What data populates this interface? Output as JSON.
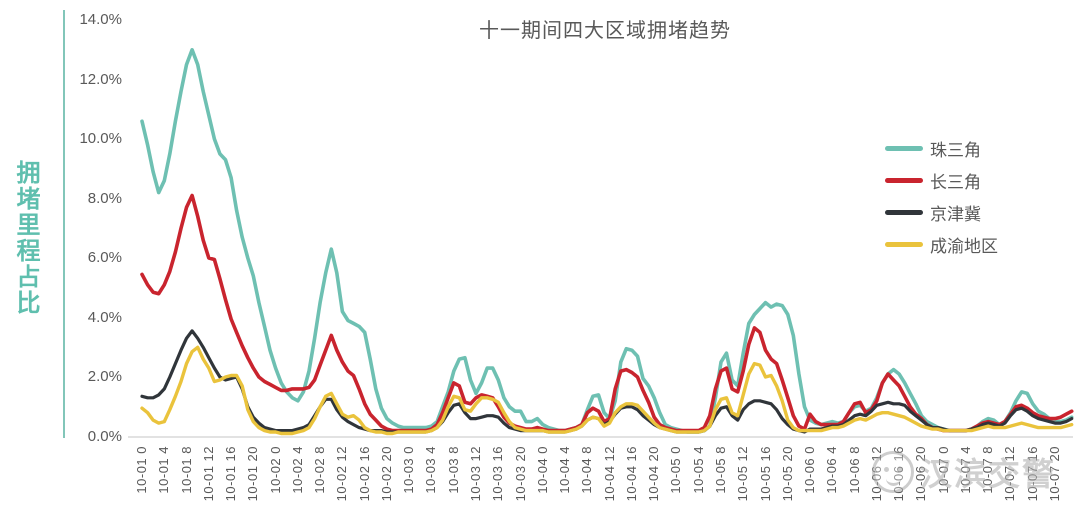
{
  "watermark": {
    "text": "汉滨交警",
    "icon": "badge-face-icon",
    "color": "#ababab"
  },
  "ui_colors": {
    "background": "#ffffff",
    "title_text": "#595959",
    "tick_text": "#595959",
    "y_axis_line": "#82c6b9",
    "y_axis_title_text": "#5fbfae",
    "baseline": "#d9d9d9"
  },
  "chart_data": {
    "type": "line",
    "title": "十一期间四大区域拥堵趋势",
    "ylabel": "拥堵里程占比",
    "xlabel": "",
    "ylim": [
      0,
      14
    ],
    "grid": false,
    "legend_position": "right",
    "x_unit": "hours from 10-01 00:00, hourly sampling",
    "x_tick_interval_hours": 4,
    "y_ticks": [
      {
        "value": 0,
        "label": "0.0%"
      },
      {
        "value": 2,
        "label": "2.0%"
      },
      {
        "value": 4,
        "label": "4.0%"
      },
      {
        "value": 6,
        "label": "6.0%"
      },
      {
        "value": 8,
        "label": "8.0%"
      },
      {
        "value": 10,
        "label": "10.0%"
      },
      {
        "value": 12,
        "label": "12.0%"
      },
      {
        "value": 14,
        "label": "14.0%"
      }
    ],
    "x_tick_labels": [
      "10-01 0",
      "10-01 4",
      "10-01 8",
      "10-01 12",
      "10-01 16",
      "10-01 20",
      "10-02 0",
      "10-02 4",
      "10-02 8",
      "10-02 12",
      "10-02 16",
      "10-02 20",
      "10-03 0",
      "10-03 4",
      "10-03 8",
      "10-03 12",
      "10-03 16",
      "10-03 20",
      "10-04 0",
      "10-04 4",
      "10-04 8",
      "10-04 12",
      "10-04 16",
      "10-04 20",
      "10-05 0",
      "10-05 4",
      "10-05 8",
      "10-05 12",
      "10-05 16",
      "10-05 20",
      "10-06 0",
      "10-06 4",
      "10-06 8",
      "10-06 12",
      "10-06 16",
      "10-06 20",
      "10-07 0",
      "10-07 4",
      "10-07 8",
      "10-07 12",
      "10-07 16",
      "10-07 20"
    ],
    "series": [
      {
        "id": "zhu-san-jiao",
        "name": "珠三角",
        "color": "#6ec0b2",
        "stroke_width": 3.6,
        "values": [
          10.6,
          9.8,
          8.9,
          8.2,
          8.6,
          9.5,
          10.6,
          11.6,
          12.5,
          13.0,
          12.5,
          11.6,
          10.8,
          10.0,
          9.5,
          9.3,
          8.7,
          7.6,
          6.7,
          6.0,
          5.4,
          4.5,
          3.7,
          2.9,
          2.3,
          1.8,
          1.5,
          1.3,
          1.2,
          1.5,
          2.2,
          3.3,
          4.5,
          5.5,
          6.3,
          5.5,
          4.2,
          3.9,
          3.8,
          3.7,
          3.5,
          2.6,
          1.6,
          0.95,
          0.6,
          0.45,
          0.35,
          0.3,
          0.3,
          0.3,
          0.3,
          0.3,
          0.35,
          0.5,
          1.0,
          1.5,
          2.2,
          2.6,
          2.65,
          1.9,
          1.45,
          1.8,
          2.3,
          2.3,
          1.9,
          1.3,
          1.0,
          0.85,
          0.85,
          0.5,
          0.5,
          0.6,
          0.4,
          0.3,
          0.25,
          0.2,
          0.2,
          0.25,
          0.3,
          0.4,
          0.9,
          1.35,
          1.4,
          0.8,
          0.6,
          1.2,
          2.5,
          2.95,
          2.9,
          2.7,
          1.95,
          1.7,
          1.3,
          0.8,
          0.4,
          0.3,
          0.25,
          0.2,
          0.15,
          0.15,
          0.15,
          0.2,
          0.35,
          1.3,
          2.5,
          2.8,
          1.9,
          1.7,
          2.8,
          3.8,
          4.1,
          4.3,
          4.5,
          4.35,
          4.45,
          4.4,
          4.1,
          3.4,
          2.1,
          1.0,
          0.55,
          0.45,
          0.4,
          0.45,
          0.5,
          0.45,
          0.5,
          0.8,
          1.0,
          1.05,
          0.85,
          0.95,
          1.3,
          1.8,
          2.1,
          2.25,
          2.1,
          1.8,
          1.45,
          1.1,
          0.7,
          0.5,
          0.4,
          0.3,
          0.25,
          0.2,
          0.2,
          0.2,
          0.2,
          0.25,
          0.35,
          0.5,
          0.6,
          0.55,
          0.4,
          0.5,
          0.8,
          1.2,
          1.5,
          1.45,
          1.1,
          0.85,
          0.75,
          0.6,
          0.5,
          0.5,
          0.55,
          0.65
        ]
      },
      {
        "id": "chang-san-jiao",
        "name": "长三角",
        "color": "#c9242e",
        "stroke_width": 3.6,
        "values": [
          5.45,
          5.1,
          4.85,
          4.8,
          5.1,
          5.55,
          6.2,
          7.0,
          7.7,
          8.1,
          7.4,
          6.6,
          6.0,
          5.95,
          5.3,
          4.6,
          3.95,
          3.5,
          3.05,
          2.65,
          2.3,
          2.0,
          1.85,
          1.75,
          1.65,
          1.55,
          1.55,
          1.6,
          1.6,
          1.6,
          1.65,
          1.9,
          2.4,
          2.9,
          3.4,
          2.9,
          2.5,
          2.2,
          2.05,
          1.6,
          1.1,
          0.75,
          0.55,
          0.35,
          0.25,
          0.2,
          0.2,
          0.2,
          0.2,
          0.2,
          0.2,
          0.2,
          0.25,
          0.4,
          0.8,
          1.3,
          1.8,
          1.7,
          1.15,
          1.1,
          1.3,
          1.4,
          1.35,
          1.3,
          1.0,
          0.65,
          0.45,
          0.35,
          0.3,
          0.25,
          0.25,
          0.3,
          0.25,
          0.2,
          0.2,
          0.2,
          0.2,
          0.25,
          0.3,
          0.4,
          0.8,
          0.95,
          0.85,
          0.5,
          0.6,
          1.6,
          2.2,
          2.25,
          2.15,
          2.0,
          1.55,
          1.15,
          0.65,
          0.4,
          0.3,
          0.25,
          0.2,
          0.2,
          0.2,
          0.2,
          0.2,
          0.3,
          0.7,
          1.6,
          2.2,
          2.3,
          1.6,
          1.5,
          2.2,
          3.1,
          3.65,
          3.5,
          2.9,
          2.6,
          2.45,
          1.9,
          1.3,
          0.7,
          0.35,
          0.25,
          0.75,
          0.5,
          0.4,
          0.4,
          0.4,
          0.4,
          0.5,
          0.8,
          1.1,
          1.15,
          0.8,
          0.9,
          1.2,
          1.8,
          2.1,
          1.9,
          1.7,
          1.35,
          1.0,
          0.75,
          0.6,
          0.4,
          0.3,
          0.25,
          0.2,
          0.2,
          0.2,
          0.2,
          0.2,
          0.25,
          0.35,
          0.45,
          0.5,
          0.45,
          0.4,
          0.5,
          0.75,
          1.0,
          1.05,
          0.95,
          0.8,
          0.7,
          0.65,
          0.6,
          0.6,
          0.65,
          0.75,
          0.85
        ]
      },
      {
        "id": "jing-jin-ji",
        "name": "京津冀",
        "color": "#30353a",
        "stroke_width": 3.2,
        "values": [
          1.35,
          1.3,
          1.3,
          1.4,
          1.6,
          2.0,
          2.45,
          2.9,
          3.3,
          3.55,
          3.3,
          3.0,
          2.65,
          2.3,
          2.0,
          1.9,
          1.95,
          2.0,
          1.6,
          1.0,
          0.65,
          0.45,
          0.3,
          0.25,
          0.2,
          0.2,
          0.2,
          0.2,
          0.25,
          0.3,
          0.4,
          0.7,
          1.0,
          1.25,
          1.25,
          0.9,
          0.65,
          0.5,
          0.4,
          0.3,
          0.25,
          0.2,
          0.2,
          0.2,
          0.15,
          0.15,
          0.15,
          0.15,
          0.15,
          0.15,
          0.15,
          0.15,
          0.2,
          0.3,
          0.5,
          0.8,
          1.05,
          1.1,
          0.8,
          0.6,
          0.6,
          0.65,
          0.7,
          0.7,
          0.65,
          0.45,
          0.3,
          0.25,
          0.2,
          0.2,
          0.2,
          0.2,
          0.2,
          0.15,
          0.15,
          0.15,
          0.15,
          0.2,
          0.25,
          0.35,
          0.55,
          0.65,
          0.6,
          0.4,
          0.5,
          0.75,
          0.95,
          1.0,
          1.0,
          0.9,
          0.7,
          0.55,
          0.4,
          0.3,
          0.25,
          0.2,
          0.15,
          0.15,
          0.15,
          0.15,
          0.15,
          0.2,
          0.35,
          0.7,
          0.95,
          1.0,
          0.7,
          0.55,
          0.9,
          1.1,
          1.2,
          1.2,
          1.15,
          1.1,
          0.9,
          0.6,
          0.4,
          0.25,
          0.2,
          0.15,
          0.25,
          0.25,
          0.25,
          0.3,
          0.35,
          0.35,
          0.4,
          0.55,
          0.7,
          0.75,
          0.7,
          0.85,
          1.05,
          1.1,
          1.15,
          1.1,
          1.1,
          1.05,
          0.85,
          0.7,
          0.55,
          0.4,
          0.3,
          0.3,
          0.25,
          0.2,
          0.2,
          0.2,
          0.2,
          0.25,
          0.3,
          0.4,
          0.45,
          0.4,
          0.35,
          0.45,
          0.7,
          0.9,
          0.95,
          0.85,
          0.7,
          0.6,
          0.55,
          0.5,
          0.45,
          0.45,
          0.5,
          0.6
        ]
      },
      {
        "id": "cheng-yu",
        "name": "成渝地区",
        "color": "#eac33c",
        "stroke_width": 3.4,
        "values": [
          0.95,
          0.8,
          0.55,
          0.45,
          0.5,
          0.9,
          1.35,
          1.85,
          2.45,
          2.85,
          3.0,
          2.6,
          2.3,
          1.85,
          1.9,
          2.0,
          2.05,
          2.05,
          1.7,
          0.9,
          0.5,
          0.3,
          0.2,
          0.15,
          0.15,
          0.1,
          0.1,
          0.1,
          0.15,
          0.2,
          0.3,
          0.6,
          1.0,
          1.35,
          1.45,
          1.1,
          0.75,
          0.65,
          0.7,
          0.55,
          0.3,
          0.2,
          0.15,
          0.15,
          0.1,
          0.1,
          0.15,
          0.15,
          0.15,
          0.15,
          0.15,
          0.15,
          0.2,
          0.3,
          0.55,
          1.0,
          1.35,
          1.3,
          0.9,
          0.85,
          1.1,
          1.3,
          1.3,
          1.25,
          1.15,
          0.8,
          0.5,
          0.3,
          0.25,
          0.2,
          0.2,
          0.2,
          0.2,
          0.15,
          0.15,
          0.15,
          0.15,
          0.2,
          0.25,
          0.35,
          0.55,
          0.65,
          0.6,
          0.35,
          0.45,
          0.8,
          1.0,
          1.1,
          1.1,
          1.05,
          0.85,
          0.65,
          0.45,
          0.3,
          0.25,
          0.2,
          0.15,
          0.15,
          0.15,
          0.15,
          0.15,
          0.2,
          0.35,
          0.9,
          1.25,
          1.3,
          0.8,
          0.7,
          1.4,
          2.1,
          2.45,
          2.4,
          2.0,
          2.05,
          1.7,
          1.2,
          0.55,
          0.3,
          0.2,
          0.2,
          0.2,
          0.2,
          0.2,
          0.25,
          0.3,
          0.3,
          0.35,
          0.45,
          0.55,
          0.6,
          0.55,
          0.65,
          0.75,
          0.8,
          0.8,
          0.75,
          0.7,
          0.65,
          0.55,
          0.45,
          0.35,
          0.3,
          0.25,
          0.25,
          0.2,
          0.2,
          0.2,
          0.2,
          0.2,
          0.2,
          0.25,
          0.3,
          0.35,
          0.3,
          0.3,
          0.3,
          0.35,
          0.4,
          0.45,
          0.4,
          0.35,
          0.3,
          0.3,
          0.3,
          0.3,
          0.3,
          0.35,
          0.4
        ]
      }
    ]
  }
}
